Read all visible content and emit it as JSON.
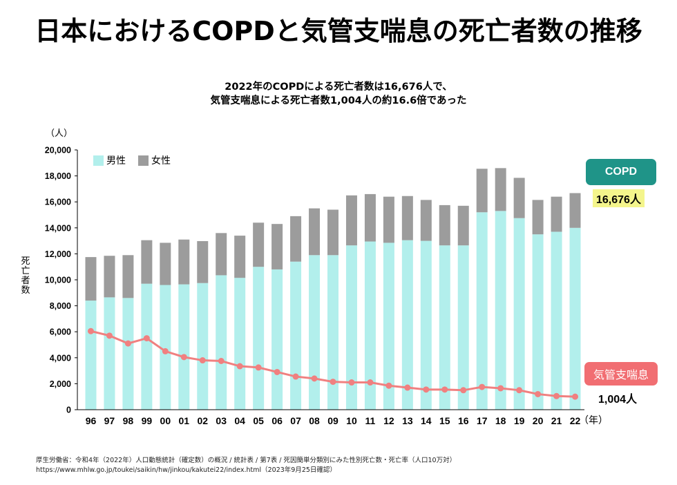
{
  "title": "日本におけるCOPDと気管支喘息の死亡者数の推移",
  "subtitle_lines": [
    "2022年のCOPDによる死亡者数は16,676人で、",
    "気管支喘息による死亡者数1,004人の約16.6倍であった"
  ],
  "annotations": {
    "copd_badge": "COPD",
    "copd_value": "16,676人",
    "asthma_badge": "気管支喘息",
    "asthma_value": "1,004人"
  },
  "source_lines": [
    "厚生労働省：令和4年（2022年）人口動態統計（確定数）の概況 / 統計表 / 第7表 / 死因簡単分類別にみた性別死亡数・死亡率（人口10万対）",
    "https://www.mhlw.go.jp/toukei/saikin/hw/jinkou/kakutei22/index.html（2023年9月25日確認）"
  ],
  "colors": {
    "male": "#b2efec",
    "female": "#9c9c9c",
    "asthma_line": "#f08080",
    "copd_badge": "#1f9488",
    "copd_value_bg": "#f4f58c",
    "asthma_badge": "#f16e72"
  },
  "chart_data": {
    "type": "bar",
    "title": "日本におけるCOPDと気管支喘息の死亡者数の推移",
    "xlabel": "（年）",
    "ylabel": "死亡者数",
    "yunit": "（人）",
    "ylim": [
      0,
      20000
    ],
    "yticks": [
      0,
      2000,
      4000,
      6000,
      8000,
      10000,
      12000,
      14000,
      16000,
      18000,
      20000
    ],
    "ytick_labels": [
      "0",
      "2,000",
      "4,000",
      "6,000",
      "8,000",
      "10,000",
      "12,000",
      "14,000",
      "16,000",
      "18,000",
      "20,000"
    ],
    "grid": false,
    "legend_position": "top-left",
    "categories": [
      "96",
      "97",
      "98",
      "99",
      "00",
      "01",
      "02",
      "03",
      "04",
      "05",
      "06",
      "07",
      "08",
      "09",
      "10",
      "11",
      "12",
      "13",
      "14",
      "15",
      "16",
      "17",
      "18",
      "19",
      "20",
      "21",
      "22"
    ],
    "series": [
      {
        "name": "男性",
        "kind": "stacked-bar",
        "stack": "COPD",
        "values": [
          8400,
          8650,
          8600,
          9700,
          9600,
          9650,
          9750,
          10350,
          10150,
          11000,
          10800,
          11400,
          11900,
          11900,
          12650,
          12950,
          12850,
          13050,
          13000,
          12650,
          12650,
          15200,
          15300,
          14750,
          13500,
          13700,
          14000
        ]
      },
      {
        "name": "女性",
        "kind": "stacked-bar",
        "stack": "COPD",
        "values": [
          3350,
          3200,
          3300,
          3350,
          3250,
          3450,
          3230,
          3250,
          3250,
          3400,
          3500,
          3500,
          3600,
          3500,
          3850,
          3650,
          3550,
          3400,
          3150,
          3100,
          3050,
          3350,
          3300,
          3100,
          2650,
          2700,
          2676
        ]
      },
      {
        "name": "気管支喘息",
        "kind": "line",
        "values": [
          6050,
          5700,
          5100,
          5500,
          4500,
          4050,
          3800,
          3750,
          3350,
          3250,
          2900,
          2550,
          2400,
          2150,
          2100,
          2100,
          1850,
          1700,
          1550,
          1550,
          1500,
          1750,
          1650,
          1500,
          1200,
          1050,
          1004
        ]
      }
    ],
    "copd_totals": [
      11750,
      11850,
      11900,
      13050,
      12850,
      13100,
      12980,
      13600,
      13400,
      14400,
      14300,
      14900,
      15500,
      15400,
      16500,
      16600,
      16400,
      16450,
      16150,
      15750,
      15700,
      18550,
      18600,
      17850,
      16150,
      16400,
      16676
    ]
  }
}
